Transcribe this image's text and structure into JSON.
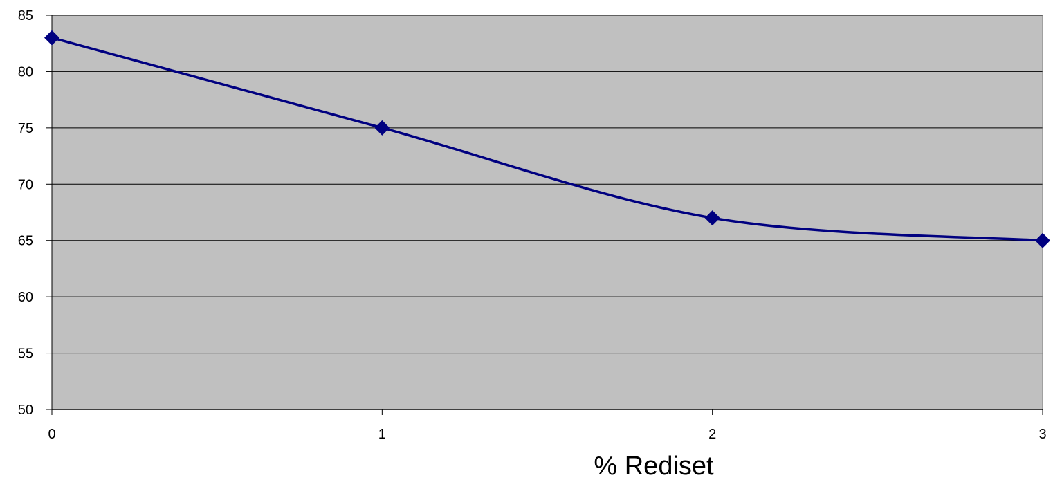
{
  "chart_data": {
    "type": "line",
    "title": "",
    "xlabel": "% Rediset",
    "ylabel": "",
    "x": [
      0,
      1,
      2,
      3
    ],
    "series": [
      {
        "values": [
          83,
          75,
          67,
          65
        ]
      }
    ],
    "xlim": [
      0,
      3
    ],
    "ylim": [
      50,
      85
    ],
    "x_ticks": [
      0,
      1,
      2,
      3
    ],
    "y_ticks": [
      50,
      55,
      60,
      65,
      70,
      75,
      80,
      85
    ],
    "grid": "horizontal",
    "legend": "none",
    "marker": "diamond",
    "smooth": true,
    "colors": {
      "plot_background": "#c0c0c0",
      "line": "#000080",
      "gridline": "#000000",
      "page_background": "#ffffff"
    }
  }
}
